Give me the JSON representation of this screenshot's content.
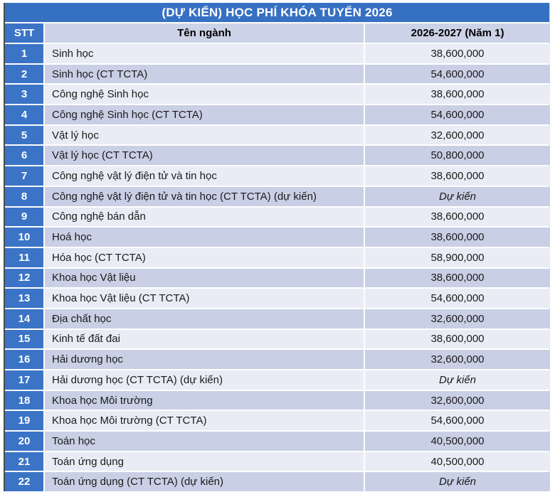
{
  "title": "(DỰ KIẾN) HỌC PHÍ KHÓA TUYỂN 2026",
  "columns": {
    "stt": "STT",
    "name": "Tên ngành",
    "value": "2026-2027 (Năm 1)"
  },
  "colors": {
    "title_bar": "#3670c2",
    "stt_blue": "#3b74c6",
    "header_bg": "#ccd3e8",
    "row_odd": "#eaecf5",
    "row_even": "#c9cfe5"
  },
  "rows": [
    {
      "stt": "1",
      "name": "Sinh học",
      "value": "38,600,000",
      "em": false
    },
    {
      "stt": "2",
      "name": "Sinh học (CT TCTA)",
      "value": "54,600,000",
      "em": false
    },
    {
      "stt": "3",
      "name": "Công nghệ Sinh học",
      "value": "38,600,000",
      "em": false
    },
    {
      "stt": "4",
      "name": "Công nghệ Sinh học (CT TCTA)",
      "value": "54,600,000",
      "em": false
    },
    {
      "stt": "5",
      "name": "Vật lý học",
      "value": "32,600,000",
      "em": false
    },
    {
      "stt": "6",
      "name": "Vật lý học (CT TCTA)",
      "value": "50,800,000",
      "em": false
    },
    {
      "stt": "7",
      "name": "Công nghệ vật lý điện tử và tin học",
      "value": "38,600,000",
      "em": false
    },
    {
      "stt": "8",
      "name": "Công nghệ vật lý điện tử và tin học (CT TCTA) (dự kiến)",
      "value": "Dự kiến",
      "em": true
    },
    {
      "stt": "9",
      "name": "Công nghệ bán dẫn",
      "value": "38,600,000",
      "em": false
    },
    {
      "stt": "10",
      "name": "Hoá học",
      "value": "38,600,000",
      "em": false
    },
    {
      "stt": "11",
      "name": "Hóa học (CT TCTA)",
      "value": "58,900,000",
      "em": false
    },
    {
      "stt": "12",
      "name": "Khoa học Vật liệu",
      "value": "38,600,000",
      "em": false
    },
    {
      "stt": "13",
      "name": "Khoa học Vật liệu (CT TCTA)",
      "value": "54,600,000",
      "em": false
    },
    {
      "stt": "14",
      "name": "Địa chất học",
      "value": "32,600,000",
      "em": false
    },
    {
      "stt": "15",
      "name": "Kinh tế đất đai",
      "value": "38,600,000",
      "em": false
    },
    {
      "stt": "16",
      "name": "Hải dương học",
      "value": "32,600,000",
      "em": false
    },
    {
      "stt": "17",
      "name": "Hải dương học (CT TCTA) (dự kiến)",
      "value": "Dự kiến",
      "em": true
    },
    {
      "stt": "18",
      "name": "Khoa học Môi trường",
      "value": "32,600,000",
      "em": false
    },
    {
      "stt": "19",
      "name": "Khoa học Môi trường (CT TCTA)",
      "value": "54,600,000",
      "em": false
    },
    {
      "stt": "20",
      "name": "Toán học",
      "value": "40,500,000",
      "em": false
    },
    {
      "stt": "21",
      "name": "Toán ứng dụng",
      "value": "40,500,000",
      "em": false
    },
    {
      "stt": "22",
      "name": "Toán ứng dụng (CT TCTA) (dự kiến)",
      "value": "Dự kiến",
      "em": true
    }
  ]
}
